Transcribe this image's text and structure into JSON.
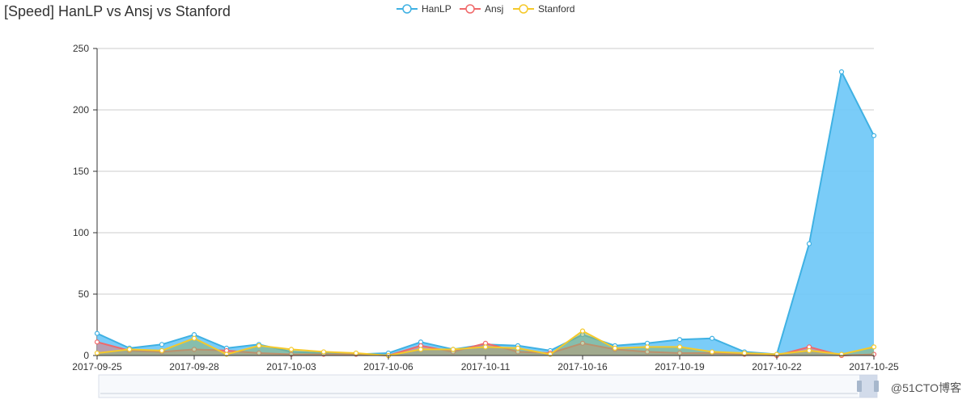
{
  "chart_data": {
    "type": "area",
    "title": "[Speed] HanLP vs Ansj vs Stanford",
    "xlabel": "",
    "ylabel": "",
    "ylim": [
      0,
      250
    ],
    "yticks": [
      0,
      50,
      100,
      150,
      200,
      250
    ],
    "legend_position": "top-center",
    "grid": true,
    "x": [
      "2017-09-25",
      "2017-09-26",
      "2017-09-27",
      "2017-09-28",
      "2017-09-29",
      "2017-10-02",
      "2017-10-03",
      "2017-10-04",
      "2017-10-05",
      "2017-10-06",
      "2017-10-09",
      "2017-10-10",
      "2017-10-11",
      "2017-10-12",
      "2017-10-13",
      "2017-10-16",
      "2017-10-17",
      "2017-10-18",
      "2017-10-19",
      "2017-10-20",
      "2017-10-21",
      "2017-10-22",
      "2017-10-23",
      "2017-10-24",
      "2017-10-25"
    ],
    "xtick_labels": [
      "2017-09-25",
      "2017-09-28",
      "2017-10-03",
      "2017-10-06",
      "2017-10-11",
      "2017-10-16",
      "2017-10-19",
      "2017-10-22",
      "2017-10-25"
    ],
    "series": [
      {
        "name": "HanLP",
        "color": "#3fb1e3",
        "fill": "#6cc7f7",
        "values": [
          18,
          6,
          9,
          17,
          6,
          9,
          3,
          2,
          1,
          2,
          11,
          5,
          9,
          8,
          4,
          17,
          8,
          10,
          13,
          14,
          3,
          1,
          91,
          231,
          179
        ]
      },
      {
        "name": "Ansj",
        "color": "#f0696a",
        "fill": "#e87a7a",
        "values": [
          11,
          4,
          3,
          5,
          4,
          2,
          1,
          1,
          1,
          0,
          8,
          3,
          10,
          3,
          2,
          10,
          5,
          3,
          2,
          2,
          1,
          0,
          7,
          0,
          1
        ]
      },
      {
        "name": "Stanford",
        "color": "#f5c92a",
        "fill": "#8fb36f",
        "values": [
          2,
          5,
          4,
          14,
          1,
          8,
          5,
          3,
          2,
          0,
          5,
          5,
          7,
          6,
          1,
          20,
          6,
          7,
          7,
          3,
          2,
          1,
          4,
          1,
          7
        ]
      }
    ]
  },
  "watermark": "@51CTO博客"
}
